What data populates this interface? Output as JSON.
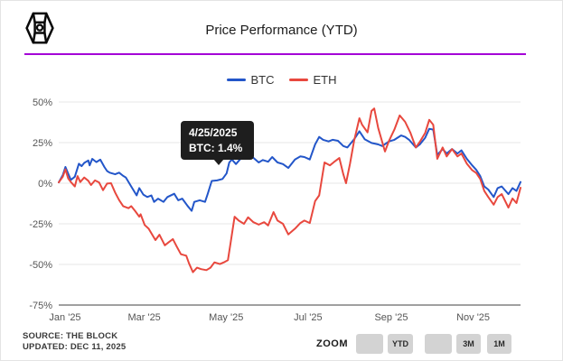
{
  "header": {
    "title": "Price Performance (YTD)",
    "logo_icon": "the-block-cube-logo",
    "accent_color": "#a400d6"
  },
  "legend": [
    {
      "label": "BTC",
      "color": "#2356c9"
    },
    {
      "label": "ETH",
      "color": "#e8483e"
    }
  ],
  "tooltip": {
    "date": "4/25/2025",
    "label": "BTC: 1.4%",
    "bg_color": "#1e1e1e"
  },
  "footer": {
    "source": "SOURCE: THE BLOCK",
    "updated": "UPDATED: DEC 11, 2025"
  },
  "zoom_controls": {
    "label": "ZOOM",
    "buttons": [
      "",
      "YTD",
      "",
      "3M",
      "1M"
    ]
  },
  "chart_data": {
    "type": "line",
    "title": "Price Performance (YTD)",
    "y_unit": "percent",
    "ylim": [
      -75,
      50
    ],
    "y_tick_values": [
      50,
      25,
      0,
      -25,
      -50,
      -75
    ],
    "y_ticks": [
      "50%",
      "25%",
      "0%",
      "-25%",
      "-50%",
      "-75%"
    ],
    "x_ticks": [
      "Jan '25",
      "Mar '25",
      "May '25",
      "Jul '25",
      "Sep '25",
      "Nov '25"
    ],
    "x_tick_dates": [
      "2025-01-01",
      "2025-03-01",
      "2025-05-01",
      "2025-07-01",
      "2025-09-01",
      "2025-11-01"
    ],
    "x_range": [
      "2025-01-01",
      "2025-12-11"
    ],
    "grid": true,
    "legend_position": "top",
    "grid_color": "#e7e7e7",
    "axis_color": "#404040",
    "tick_label_color": "#555555",
    "series": [
      {
        "name": "BTC",
        "color": "#2356c9",
        "points": [
          [
            "2025-01-01",
            0.5
          ],
          [
            "2025-01-04",
            5
          ],
          [
            "2025-01-06",
            10
          ],
          [
            "2025-01-08",
            6
          ],
          [
            "2025-01-10",
            2
          ],
          [
            "2025-01-13",
            4
          ],
          [
            "2025-01-16",
            12
          ],
          [
            "2025-01-18",
            10.5
          ],
          [
            "2025-01-20",
            12.5
          ],
          [
            "2025-01-23",
            14
          ],
          [
            "2025-01-24",
            11
          ],
          [
            "2025-01-26",
            15
          ],
          [
            "2025-01-29",
            13
          ],
          [
            "2025-02-01",
            14.5
          ],
          [
            "2025-02-04",
            10
          ],
          [
            "2025-02-06",
            7.5
          ],
          [
            "2025-02-08",
            6.5
          ],
          [
            "2025-02-12",
            5.5
          ],
          [
            "2025-02-15",
            6.5
          ],
          [
            "2025-02-18",
            4.5
          ],
          [
            "2025-02-20",
            3.5
          ],
          [
            "2025-02-24",
            -2
          ],
          [
            "2025-02-28",
            -7.5
          ],
          [
            "2025-03-02",
            -3
          ],
          [
            "2025-03-05",
            -7
          ],
          [
            "2025-03-08",
            -8.5
          ],
          [
            "2025-03-11",
            -7.5
          ],
          [
            "2025-03-13",
            -11.5
          ],
          [
            "2025-03-16",
            -9.5
          ],
          [
            "2025-03-20",
            -11.5
          ],
          [
            "2025-03-23",
            -8.5
          ],
          [
            "2025-03-28",
            -6.5
          ],
          [
            "2025-03-31",
            -10.5
          ],
          [
            "2025-04-03",
            -9.5
          ],
          [
            "2025-04-07",
            -14
          ],
          [
            "2025-04-10",
            -17
          ],
          [
            "2025-04-12",
            -11.5
          ],
          [
            "2025-04-16",
            -10.5
          ],
          [
            "2025-04-20",
            -11.5
          ],
          [
            "2025-04-22",
            -6.5
          ],
          [
            "2025-04-25",
            1.4
          ],
          [
            "2025-04-29",
            1.7
          ],
          [
            "2025-05-03",
            2.6
          ],
          [
            "2025-05-06",
            6
          ],
          [
            "2025-05-08",
            12.8
          ],
          [
            "2025-05-10",
            14.6
          ],
          [
            "2025-05-13",
            11.8
          ],
          [
            "2025-05-16",
            14.6
          ],
          [
            "2025-05-21",
            17.9
          ],
          [
            "2025-05-26",
            15.6
          ],
          [
            "2025-05-30",
            12.8
          ],
          [
            "2025-06-02",
            14.3
          ],
          [
            "2025-06-06",
            13.2
          ],
          [
            "2025-06-09",
            16.1
          ],
          [
            "2025-06-13",
            12.8
          ],
          [
            "2025-06-17",
            11.8
          ],
          [
            "2025-06-21",
            9.4
          ],
          [
            "2025-06-26",
            14.6
          ],
          [
            "2025-06-30",
            16.5
          ],
          [
            "2025-07-03",
            16.1
          ],
          [
            "2025-07-07",
            14.6
          ],
          [
            "2025-07-11",
            23.9
          ],
          [
            "2025-07-14",
            28.5
          ],
          [
            "2025-07-17",
            26.7
          ],
          [
            "2025-07-21",
            25.7
          ],
          [
            "2025-07-24",
            26.7
          ],
          [
            "2025-07-28",
            26.1
          ],
          [
            "2025-08-01",
            22.9
          ],
          [
            "2025-08-04",
            22
          ],
          [
            "2025-08-09",
            27
          ],
          [
            "2025-08-13",
            32
          ],
          [
            "2025-08-17",
            27
          ],
          [
            "2025-08-22",
            24.8
          ],
          [
            "2025-08-27",
            23.9
          ],
          [
            "2025-08-30",
            22.9
          ],
          [
            "2025-09-04",
            25.7
          ],
          [
            "2025-09-08",
            26.7
          ],
          [
            "2025-09-13",
            29.4
          ],
          [
            "2025-09-16",
            28.5
          ],
          [
            "2025-09-19",
            26.7
          ],
          [
            "2025-09-24",
            22
          ],
          [
            "2025-09-27",
            23.9
          ],
          [
            "2025-10-01",
            28
          ],
          [
            "2025-10-04",
            33.5
          ],
          [
            "2025-10-07",
            33
          ],
          [
            "2025-10-10",
            17.4
          ],
          [
            "2025-10-14",
            21
          ],
          [
            "2025-10-17",
            18.3
          ],
          [
            "2025-10-21",
            21
          ],
          [
            "2025-10-25",
            18.3
          ],
          [
            "2025-10-28",
            20.2
          ],
          [
            "2025-11-01",
            15
          ],
          [
            "2025-11-05",
            11
          ],
          [
            "2025-11-08",
            8.2
          ],
          [
            "2025-11-11",
            4.4
          ],
          [
            "2025-11-14",
            -2
          ],
          [
            "2025-11-17",
            -3.9
          ],
          [
            "2025-11-21",
            -8.5
          ],
          [
            "2025-11-24",
            -3
          ],
          [
            "2025-11-27",
            -2
          ],
          [
            "2025-12-02",
            -6.7
          ],
          [
            "2025-12-05",
            -3
          ],
          [
            "2025-12-08",
            -4.8
          ],
          [
            "2025-12-11",
            0.7
          ]
        ]
      },
      {
        "name": "ETH",
        "color": "#e8483e",
        "points": [
          [
            "2025-01-01",
            0.5
          ],
          [
            "2025-01-04",
            4
          ],
          [
            "2025-01-06",
            8.5
          ],
          [
            "2025-01-08",
            3
          ],
          [
            "2025-01-10",
            0.7
          ],
          [
            "2025-01-13",
            -2
          ],
          [
            "2025-01-15",
            4.4
          ],
          [
            "2025-01-17",
            0.7
          ],
          [
            "2025-01-20",
            3.5
          ],
          [
            "2025-01-23",
            1.5
          ],
          [
            "2025-01-25",
            -1.1
          ],
          [
            "2025-01-28",
            1.7
          ],
          [
            "2025-01-31",
            0.5
          ],
          [
            "2025-02-03",
            -4.3
          ],
          [
            "2025-02-06",
            -0.2
          ],
          [
            "2025-02-09",
            0
          ],
          [
            "2025-02-12",
            -5.7
          ],
          [
            "2025-02-15",
            -10.4
          ],
          [
            "2025-02-18",
            -14.1
          ],
          [
            "2025-02-22",
            -15.4
          ],
          [
            "2025-02-24",
            -14.1
          ],
          [
            "2025-02-27",
            -17.2
          ],
          [
            "2025-03-02",
            -20.6
          ],
          [
            "2025-03-03",
            -19.1
          ],
          [
            "2025-03-06",
            -25.7
          ],
          [
            "2025-03-09",
            -28
          ],
          [
            "2025-03-14",
            -35
          ],
          [
            "2025-03-17",
            -31.7
          ],
          [
            "2025-03-21",
            -38.2
          ],
          [
            "2025-03-24",
            -36.3
          ],
          [
            "2025-03-27",
            -34.4
          ],
          [
            "2025-03-30",
            -39.1
          ],
          [
            "2025-04-02",
            -43.7
          ],
          [
            "2025-04-06",
            -44.6
          ],
          [
            "2025-04-08",
            -49.3
          ],
          [
            "2025-04-11",
            -54.8
          ],
          [
            "2025-04-14",
            -52
          ],
          [
            "2025-04-17",
            -52.9
          ],
          [
            "2025-04-21",
            -53.5
          ],
          [
            "2025-04-24",
            -52
          ],
          [
            "2025-04-27",
            -48.7
          ],
          [
            "2025-05-01",
            -49.8
          ],
          [
            "2025-05-04",
            -48.7
          ],
          [
            "2025-05-07",
            -47.4
          ],
          [
            "2025-05-09",
            -37
          ],
          [
            "2025-05-12",
            -20.6
          ],
          [
            "2025-05-15",
            -23
          ],
          [
            "2025-05-19",
            -25
          ],
          [
            "2025-05-22",
            -21
          ],
          [
            "2025-05-26",
            -24
          ],
          [
            "2025-05-30",
            -25.5
          ],
          [
            "2025-06-03",
            -24
          ],
          [
            "2025-06-06",
            -26
          ],
          [
            "2025-06-10",
            -17.8
          ],
          [
            "2025-06-13",
            -23
          ],
          [
            "2025-06-17",
            -25
          ],
          [
            "2025-06-21",
            -31.5
          ],
          [
            "2025-06-26",
            -28
          ],
          [
            "2025-06-30",
            -24.5
          ],
          [
            "2025-07-03",
            -23
          ],
          [
            "2025-07-07",
            -24.5
          ],
          [
            "2025-07-11",
            -11
          ],
          [
            "2025-07-14",
            -7.5
          ],
          [
            "2025-07-18",
            12.8
          ],
          [
            "2025-07-22",
            11
          ],
          [
            "2025-07-25",
            13
          ],
          [
            "2025-07-29",
            15.5
          ],
          [
            "2025-08-01",
            5.5
          ],
          [
            "2025-08-03",
            0
          ],
          [
            "2025-08-06",
            12
          ],
          [
            "2025-08-09",
            26
          ],
          [
            "2025-08-13",
            40
          ],
          [
            "2025-08-15",
            36
          ],
          [
            "2025-08-19",
            31.3
          ],
          [
            "2025-08-22",
            44.5
          ],
          [
            "2025-08-24",
            46
          ],
          [
            "2025-08-27",
            34
          ],
          [
            "2025-09-01",
            19.5
          ],
          [
            "2025-09-04",
            26
          ],
          [
            "2025-09-08",
            33
          ],
          [
            "2025-09-12",
            41.7
          ],
          [
            "2025-09-16",
            37.8
          ],
          [
            "2025-09-20",
            31
          ],
          [
            "2025-09-24",
            22
          ],
          [
            "2025-09-27",
            25.5
          ],
          [
            "2025-10-01",
            31
          ],
          [
            "2025-10-04",
            39
          ],
          [
            "2025-10-07",
            36
          ],
          [
            "2025-10-10",
            15
          ],
          [
            "2025-10-14",
            22
          ],
          [
            "2025-10-17",
            16.5
          ],
          [
            "2025-10-21",
            21
          ],
          [
            "2025-10-25",
            16.5
          ],
          [
            "2025-10-28",
            18.3
          ],
          [
            "2025-11-01",
            12
          ],
          [
            "2025-11-05",
            8
          ],
          [
            "2025-11-08",
            6.3
          ],
          [
            "2025-11-11",
            2.6
          ],
          [
            "2025-11-14",
            -4.8
          ],
          [
            "2025-11-17",
            -8.5
          ],
          [
            "2025-11-21",
            -13.2
          ],
          [
            "2025-11-24",
            -8.5
          ],
          [
            "2025-11-27",
            -6.7
          ],
          [
            "2025-12-02",
            -15
          ],
          [
            "2025-12-05",
            -9.4
          ],
          [
            "2025-12-08",
            -12.2
          ],
          [
            "2025-12-11",
            -2.8
          ]
        ]
      }
    ]
  }
}
